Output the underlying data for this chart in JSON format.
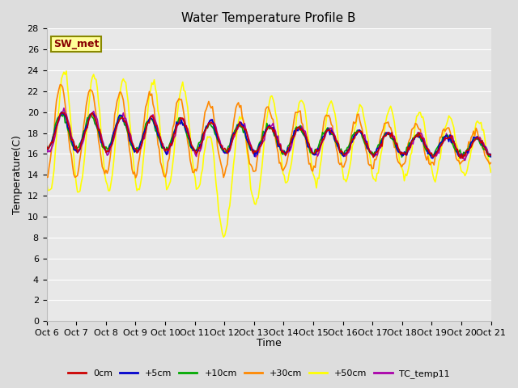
{
  "title": "Water Temperature Profile B",
  "xlabel": "Time",
  "ylabel": "Temperature(C)",
  "ylim": [
    0,
    28
  ],
  "yticks": [
    0,
    2,
    4,
    6,
    8,
    10,
    12,
    14,
    16,
    18,
    20,
    22,
    24,
    26,
    28
  ],
  "xtick_labels": [
    "Oct 6",
    "Oct 7",
    "Oct 8",
    "Oct 9",
    "Oct 10",
    "Oct 11",
    "Oct 12",
    "Oct 13",
    "Oct 14",
    "Oct 15",
    "Oct 16",
    "Oct 17",
    "Oct 18",
    "Oct 19",
    "Oct 20",
    "Oct 21"
  ],
  "series_colors": {
    "0cm": "#cc0000",
    "+5cm": "#0000cc",
    "+10cm": "#00aa00",
    "+30cm": "#ff8800",
    "+50cm": "#ffff00",
    "TC_temp11": "#aa00aa"
  },
  "annotation_text": "SW_met",
  "annotation_fg": "#880000",
  "annotation_bg": "#ffff99",
  "annotation_edge": "#888800",
  "background_color": "#dddddd",
  "plot_bg": "#e8e8e8",
  "grid_color": "#ffffff",
  "title_fontsize": 11,
  "tick_fontsize": 8,
  "label_fontsize": 9,
  "legend_fontsize": 8
}
